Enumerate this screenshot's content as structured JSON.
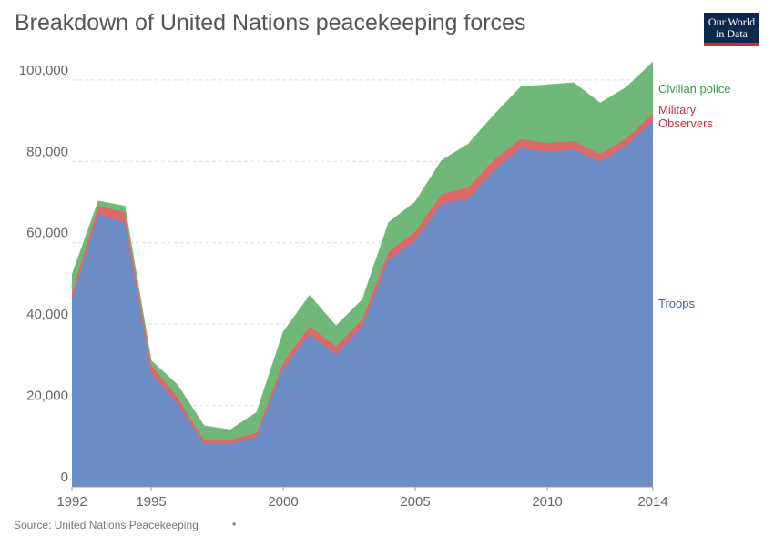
{
  "header": {
    "title": "Breakdown of United Nations peacekeeping forces",
    "logo_line1": "Our World",
    "logo_line2": "in Data"
  },
  "footer": {
    "source": "Source: United Nations Peacekeeping",
    "dot": "•"
  },
  "chart_data": {
    "type": "area",
    "stacked": true,
    "x": [
      1992,
      1993,
      1994,
      1995,
      1996,
      1997,
      1998,
      1999,
      2000,
      2001,
      2002,
      2003,
      2004,
      2005,
      2006,
      2007,
      2008,
      2009,
      2010,
      2011,
      2012,
      2013,
      2014
    ],
    "x_ticks": [
      "1992",
      "1995",
      "2000",
      "2005",
      "2010",
      "2014"
    ],
    "y_ticks": [
      "0",
      "20,000",
      "40,000",
      "60,000",
      "80,000",
      "100,000"
    ],
    "ylim": [
      0,
      104000
    ],
    "grid": true,
    "series": [
      {
        "name": "Troops",
        "color": "#6b8cc4",
        "values": [
          46000,
          67000,
          65000,
          28000,
          20500,
          10500,
          10500,
          12300,
          29000,
          37500,
          32500,
          39500,
          55800,
          60500,
          69500,
          70800,
          77800,
          83300,
          82300,
          82800,
          80000,
          83800,
          90000
        ]
      },
      {
        "name": "Military Observers",
        "color": "#dc6868",
        "values": [
          1500,
          2000,
          2500,
          2000,
          1500,
          1000,
          1000,
          1000,
          1500,
          2000,
          2000,
          1700,
          2000,
          2200,
          2500,
          2700,
          2700,
          2200,
          2200,
          2200,
          1800,
          1800,
          1800
        ]
      },
      {
        "name": "Civilian police",
        "color": "#70b878",
        "values": [
          4500,
          1200,
          1500,
          1000,
          3000,
          3500,
          2500,
          5000,
          7500,
          7500,
          5000,
          4800,
          7200,
          7300,
          8200,
          10700,
          11000,
          12800,
          14300,
          14300,
          12500,
          12600,
          12600
        ]
      }
    ]
  }
}
